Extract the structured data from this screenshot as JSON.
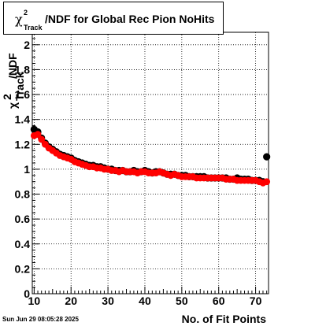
{
  "chart_data": {
    "type": "scatter",
    "title": {
      "symbol": "χ",
      "sup": "2",
      "sub": "Track",
      "text": "/NDF for Global Rec Pion NoHits"
    },
    "xlabel": "No. of Fit Points",
    "ylabel": {
      "symbol": "χ",
      "sup": "2",
      "sub": "Track",
      "text": "/NDF"
    },
    "xlim": [
      9.5,
      73.5
    ],
    "ylim": [
      0,
      2.1
    ],
    "xticks": [
      10,
      20,
      30,
      40,
      50,
      60,
      70
    ],
    "yticks": [
      0,
      0.2,
      0.4,
      0.6,
      0.8,
      1,
      1.2,
      1.4,
      1.6,
      1.8,
      2
    ],
    "grid": true,
    "series": [
      {
        "color": "#000000",
        "x": [
          10,
          11,
          12,
          13,
          14,
          15,
          16,
          17,
          18,
          19,
          20,
          21,
          22,
          23,
          24,
          25,
          26,
          27,
          28,
          29,
          30,
          31,
          32,
          33,
          34,
          35,
          36,
          37,
          38,
          39,
          40,
          41,
          42,
          43,
          44,
          45,
          46,
          47,
          48,
          49,
          50,
          51,
          52,
          53,
          54,
          55,
          56,
          57,
          58,
          59,
          60,
          61,
          62,
          63,
          64,
          65,
          66,
          67,
          68,
          69,
          70,
          71,
          72,
          73
        ],
        "y": [
          1.32,
          1.3,
          1.25,
          1.21,
          1.18,
          1.16,
          1.14,
          1.12,
          1.11,
          1.1,
          1.09,
          1.07,
          1.06,
          1.05,
          1.04,
          1.03,
          1.03,
          1.02,
          1.02,
          1.01,
          1.0,
          1.0,
          0.99,
          0.99,
          0.99,
          0.98,
          0.98,
          0.99,
          0.98,
          0.98,
          0.99,
          0.98,
          0.97,
          0.98,
          0.98,
          0.97,
          0.96,
          0.96,
          0.96,
          0.95,
          0.95,
          0.95,
          0.94,
          0.94,
          0.94,
          0.94,
          0.94,
          0.93,
          0.93,
          0.93,
          0.93,
          0.93,
          0.93,
          0.92,
          0.92,
          0.93,
          0.92,
          0.92,
          0.92,
          0.91,
          0.91,
          0.91,
          0.9,
          1.1
        ]
      },
      {
        "color": "#ff0000",
        "x": [
          10,
          11,
          12,
          13,
          14,
          15,
          16,
          17,
          18,
          19,
          20,
          21,
          22,
          23,
          24,
          25,
          26,
          27,
          28,
          29,
          30,
          31,
          32,
          33,
          34,
          35,
          36,
          37,
          38,
          39,
          40,
          41,
          42,
          43,
          44,
          45,
          46,
          47,
          48,
          49,
          50,
          51,
          52,
          53,
          54,
          55,
          56,
          57,
          58,
          59,
          60,
          61,
          62,
          63,
          64,
          65,
          66,
          67,
          68,
          69,
          70,
          71,
          72,
          73
        ],
        "y": [
          1.27,
          1.28,
          1.24,
          1.2,
          1.17,
          1.15,
          1.13,
          1.11,
          1.1,
          1.09,
          1.08,
          1.06,
          1.05,
          1.04,
          1.03,
          1.02,
          1.02,
          1.01,
          1.01,
          1.0,
          1.0,
          0.99,
          0.99,
          0.98,
          0.99,
          0.98,
          0.98,
          0.98,
          0.97,
          0.98,
          0.98,
          0.97,
          0.97,
          0.97,
          0.98,
          0.97,
          0.96,
          0.95,
          0.96,
          0.95,
          0.94,
          0.94,
          0.94,
          0.94,
          0.93,
          0.93,
          0.93,
          0.93,
          0.93,
          0.93,
          0.93,
          0.93,
          0.92,
          0.92,
          0.92,
          0.91,
          0.91,
          0.91,
          0.91,
          0.91,
          0.91,
          0.9,
          0.89,
          0.9
        ]
      }
    ]
  },
  "timestamp": "Sun Jun 29 08:05:28 2025"
}
